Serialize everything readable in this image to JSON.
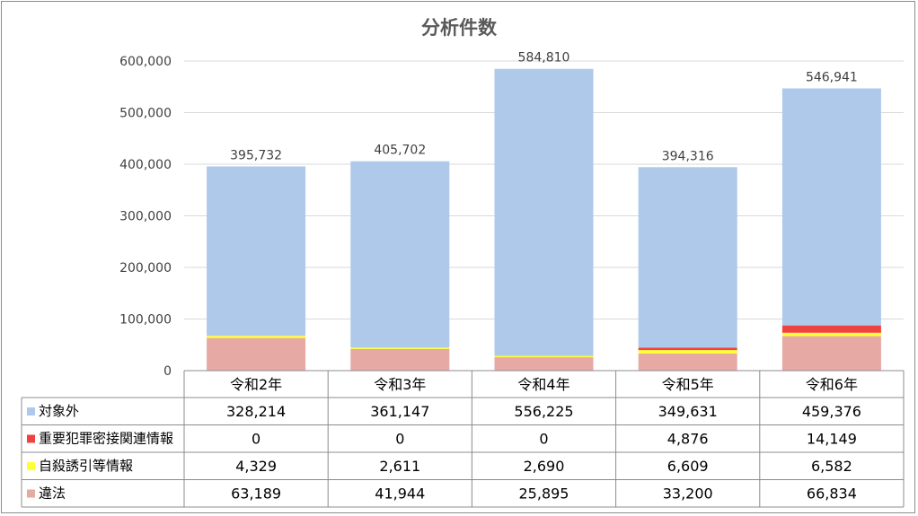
{
  "chart_data": {
    "type": "bar",
    "stacked": true,
    "title": "分析件数",
    "categories": [
      "令和2年",
      "令和3年",
      "令和4年",
      "令和5年",
      "令和6年"
    ],
    "ylim": [
      0,
      600000
    ],
    "yticks": [
      "0",
      "100,000",
      "200,000",
      "300,000",
      "400,000",
      "500,000",
      "600,000"
    ],
    "grid": true,
    "legend": "data-table",
    "series": [
      {
        "name": "違法",
        "color": "#e6a9a4",
        "values": [
          63189,
          41944,
          25895,
          33200,
          66834
        ],
        "labels": [
          "63,189",
          "41,944",
          "25,895",
          "33,200",
          "66,834"
        ]
      },
      {
        "name": "自殺誘引等情報",
        "color": "#ffff33",
        "values": [
          4329,
          2611,
          2690,
          6609,
          6582
        ],
        "labels": [
          "4,329",
          "2,611",
          "2,690",
          "6,609",
          "6,582"
        ]
      },
      {
        "name": "重要犯罪密接関連情報",
        "color": "#f04141",
        "values": [
          0,
          0,
          0,
          4876,
          14149
        ],
        "labels": [
          "0",
          "0",
          "0",
          "4,876",
          "14,149"
        ]
      },
      {
        "name": "対象外",
        "color": "#aec9ea",
        "values": [
          328214,
          361147,
          556225,
          349631,
          459376
        ],
        "labels": [
          "328,214",
          "361,147",
          "556,225",
          "349,631",
          "459,376"
        ]
      }
    ],
    "totals": [
      395732,
      405702,
      584810,
      394316,
      546941
    ],
    "total_labels": [
      "395,732",
      "405,702",
      "584,810",
      "394,316",
      "546,941"
    ],
    "table_row_order": [
      "対象外",
      "重要犯罪密接関連情報",
      "自殺誘引等情報",
      "違法"
    ]
  }
}
